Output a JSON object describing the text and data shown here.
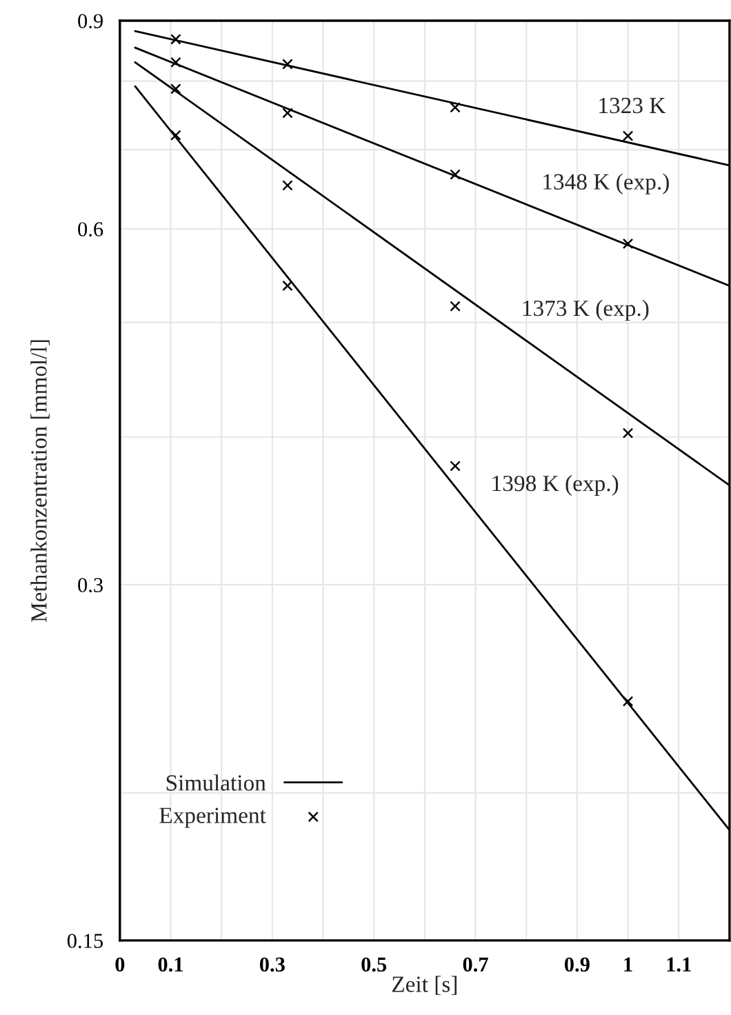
{
  "chart_data": {
    "type": "line",
    "xlabel": "Zeit [s]",
    "ylabel": "Methankonzentration [mmol/l]",
    "log": "y",
    "grid": true,
    "legend": "bottom left",
    "xlim": [
      0,
      1.2
    ],
    "xticks": [
      0,
      0.1,
      {
        "value": 0.2,
        "label": null
      },
      0.3,
      {
        "value": 0.4,
        "label": null
      },
      0.5,
      {
        "value": 0.6,
        "label": null
      },
      0.7,
      {
        "value": 0.8,
        "label": null
      },
      0.9,
      1,
      1.1
    ],
    "ylim": [
      0.15,
      0.9
    ],
    "yticks": [
      0.15,
      {
        "value": 0.2,
        "label": null
      },
      0.3,
      {
        "value": 0.4,
        "label": null
      },
      {
        "value": 0.5,
        "label": null
      },
      0.6,
      {
        "value": 0.7,
        "label": null
      },
      {
        "value": 0.8,
        "label": null
      },
      0.9
    ],
    "series": [
      {
        "name": "Simulation",
        "color": "#000000",
        "line_style": "solid",
        "marker": "none",
        "x": [
          0.03,
          1.2
        ],
        "values": [
          0.882,
          0.679
        ]
      },
      {
        "color": "#000000",
        "line_style": "solid",
        "marker": "none",
        "x": [
          0.03,
          1.2
        ],
        "values": [
          0.854,
          0.537
        ]
      },
      {
        "color": "#000000",
        "line_style": "solid",
        "marker": "none",
        "x": [
          0.03,
          1.2
        ],
        "values": [
          0.83,
          0.364
        ]
      },
      {
        "color": "#000000",
        "line_style": "solid",
        "marker": "none",
        "x": [
          0.03,
          1.2
        ],
        "values": [
          0.792,
          0.186
        ]
      },
      {
        "name": "Experiment",
        "type": "scatter",
        "color": "#000000",
        "marker": "cross",
        "x": [
          0.11,
          0.33,
          0.66,
          1.0
        ],
        "values": [
          0.868,
          0.827,
          0.76,
          0.719
        ]
      },
      {
        "type": "scatter",
        "color": "#000000",
        "marker": "cross",
        "x": [
          0.11,
          0.33,
          0.66,
          1.0
        ],
        "values": [
          0.83,
          0.752,
          0.667,
          0.583
        ]
      },
      {
        "type": "scatter",
        "color": "#000000",
        "marker": "cross",
        "x": [
          0.11,
          0.33,
          0.66,
          1.0
        ],
        "values": [
          0.788,
          0.653,
          0.516,
          0.403
        ]
      },
      {
        "type": "scatter",
        "color": "#000000",
        "marker": "cross",
        "x": [
          0.11,
          0.33,
          0.66,
          1.0
        ],
        "values": [
          0.72,
          0.537,
          0.378,
          0.239
        ]
      }
    ],
    "annotations": [
      "1323 K",
      "1348 K (exp.)",
      "1373 K (exp.)",
      "1398 K (exp.)"
    ]
  }
}
